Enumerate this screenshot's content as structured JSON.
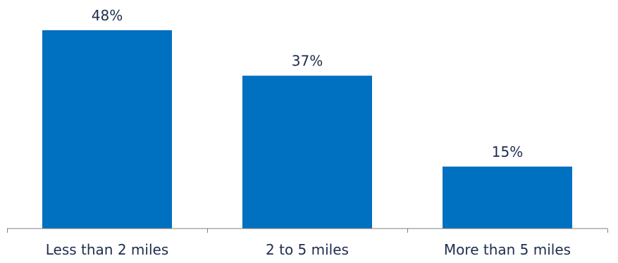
{
  "chart_data": {
    "type": "bar",
    "categories": [
      "Less than 2 miles",
      "2 to 5 miles",
      "More than 5 miles"
    ],
    "values": [
      48,
      37,
      15
    ],
    "value_labels": [
      "48%",
      "37%",
      "15%"
    ],
    "title": "",
    "xlabel": "",
    "ylabel": "",
    "ylim": [
      0,
      48
    ],
    "grid": false,
    "legend": "none",
    "bar_color": "#0070c0"
  }
}
